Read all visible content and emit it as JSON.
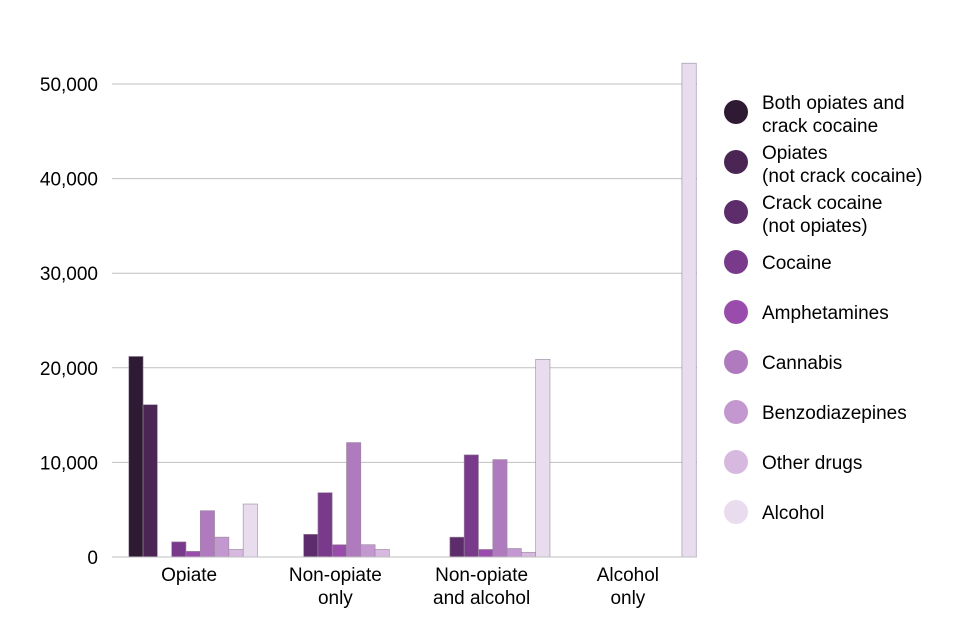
{
  "chart_data": {
    "type": "bar",
    "categories": [
      [
        "Opiate"
      ],
      [
        "Non-opiate",
        "only"
      ],
      [
        "Non-opiate",
        "and alcohol"
      ],
      [
        "Alcohol",
        "only"
      ]
    ],
    "ylim": [
      0,
      55000
    ],
    "yticks": [
      0,
      10000,
      20000,
      30000,
      40000,
      50000
    ],
    "ytick_labels": [
      "0",
      "10,000",
      "20,000",
      "30,000",
      "40,000",
      "50,000"
    ],
    "grid": true,
    "legend_position": "right",
    "series": [
      {
        "name": [
          "Both opiates and",
          "crack cocaine"
        ],
        "color": "#2e1a33",
        "values": [
          21200,
          0,
          0,
          0
        ]
      },
      {
        "name": [
          "Opiates",
          "(not crack cocaine)"
        ],
        "color": "#4b2654",
        "values": [
          16100,
          0,
          0,
          0
        ]
      },
      {
        "name": [
          "Crack cocaine",
          "(not opiates)"
        ],
        "color": "#5c2d6a",
        "values": [
          0,
          2400,
          2100,
          0
        ]
      },
      {
        "name": [
          "Cocaine"
        ],
        "color": "#7a3a8c",
        "values": [
          1600,
          6800,
          10800,
          0
        ]
      },
      {
        "name": [
          "Amphetamines"
        ],
        "color": "#9a4cac",
        "values": [
          600,
          1300,
          800,
          0
        ]
      },
      {
        "name": [
          "Cannabis"
        ],
        "color": "#b07abf",
        "values": [
          4900,
          12100,
          10300,
          0
        ]
      },
      {
        "name": [
          "Benzodiazepines"
        ],
        "color": "#c397cf",
        "values": [
          2100,
          1300,
          900,
          0
        ]
      },
      {
        "name": [
          "Other drugs"
        ],
        "color": "#d7b8df",
        "values": [
          800,
          800,
          500,
          0
        ]
      },
      {
        "name": [
          "Alcohol"
        ],
        "color": "#e9dcee",
        "values": [
          5600,
          0,
          20900,
          52200
        ]
      }
    ]
  }
}
